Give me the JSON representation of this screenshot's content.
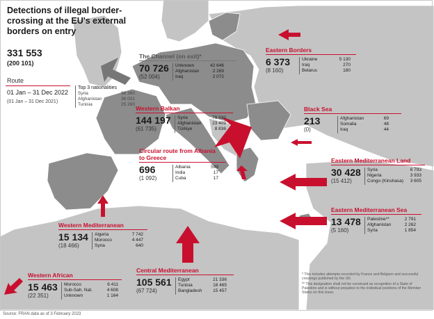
{
  "title": "Detections of illegal border-crossing at the EU's external borders on entry",
  "total": "331 553",
  "total_prev": "(200 101)",
  "route_label": "Route",
  "period": "01 Jan – 31 Dec 2022",
  "period_prev": "(01 Jan – 31 Dec 2021)",
  "top3_header": "Top 3 nationalities",
  "top3_example": [
    {
      "name": "Syria",
      "value": "98 360"
    },
    {
      "name": "Afghanistan",
      "value": "36 031"
    },
    {
      "name": "Tunisia",
      "value": "25 260"
    }
  ],
  "routes": {
    "channel": {
      "name": "The Channel (on exit)*",
      "value": "70 726",
      "prev": "(52 004)",
      "nat": [
        {
          "name": "Unknown",
          "value": "42 646"
        },
        {
          "name": "Afghanistan",
          "value": "2 269"
        },
        {
          "name": "Iraq",
          "value": "2 072"
        }
      ]
    },
    "eastern_borders": {
      "name": "Eastern Borders",
      "value": "6 373",
      "prev": "(8 160)",
      "nat": [
        {
          "name": "Ukraine",
          "value": "5 130"
        },
        {
          "name": "Iraq",
          "value": "270"
        },
        {
          "name": "Belarus",
          "value": "180"
        }
      ]
    },
    "western_balkan": {
      "name": "Western Balkan",
      "value": "144 197",
      "prev": "(61 735)",
      "nat": [
        {
          "name": "Syria",
          "value": "79 932"
        },
        {
          "name": "Afghanistan",
          "value": "23 409"
        },
        {
          "name": "Türkiye",
          "value": "8 836"
        }
      ]
    },
    "black_sea": {
      "name": "Black Sea",
      "value": "213",
      "prev": "(0)",
      "nat": [
        {
          "name": "Afghanistan",
          "value": "69"
        },
        {
          "name": "Somalia",
          "value": "48"
        },
        {
          "name": "Iraq",
          "value": "44"
        }
      ]
    },
    "circular": {
      "name": "Circular route from Albania to Greece",
      "value": "696",
      "prev": "(1 092)",
      "nat": [
        {
          "name": "Albania",
          "value": "599"
        },
        {
          "name": "India",
          "value": "17"
        },
        {
          "name": "Cuba",
          "value": "17"
        }
      ]
    },
    "em_land": {
      "name": "Eastern Mediterranean Land",
      "value": "30 428",
      "prev": "(15 412)",
      "nat": [
        {
          "name": "Syria",
          "value": "6 793"
        },
        {
          "name": "Nigeria",
          "value": "3 933"
        },
        {
          "name": "Congo (Kinshasa)",
          "value": "3 605"
        }
      ]
    },
    "em_sea": {
      "name": "Eastern Mediterranean Sea",
      "value": "13 478",
      "prev": "(5 160)",
      "nat": [
        {
          "name": "Palestine**",
          "value": "2 791"
        },
        {
          "name": "Afghanistan",
          "value": "2 262"
        },
        {
          "name": "Syria",
          "value": "1 854"
        }
      ]
    },
    "western_med": {
      "name": "Western Mediterranean",
      "value": "15 134",
      "prev": "(18 466)",
      "nat": [
        {
          "name": "Algeria",
          "value": "7 742"
        },
        {
          "name": "Morocco",
          "value": "4 447"
        },
        {
          "name": "Syria",
          "value": "640"
        }
      ]
    },
    "central_med": {
      "name": "Central Mediterranean",
      "value": "105 561",
      "prev": "(67 724)",
      "nat": [
        {
          "name": "Egypt",
          "value": "21 336"
        },
        {
          "name": "Tunisia",
          "value": "18 465"
        },
        {
          "name": "Bangladesh",
          "value": "15 457"
        }
      ]
    },
    "western_african": {
      "name": "Western African",
      "value": "15 463",
      "prev": "(22 351)",
      "nat": [
        {
          "name": "Morocco",
          "value": "6 411"
        },
        {
          "name": "Sub-Sah. Nat.",
          "value": "4 608"
        },
        {
          "name": "Unknown",
          "value": "1 164"
        }
      ]
    }
  },
  "notes": [
    "* This includes attempts recorded by France and Belgium and successful crossings published by the UK.",
    "** This designation shall not be construed as recognition of a State of Palestine and is without prejudice to the individual positions of the Member States on this issue."
  ],
  "source": "Source: FRAN data as of 3 February 2023",
  "colors": {
    "eu": "#8c8c8c",
    "noneu": "#c4c4c4",
    "sea": "#ffffff",
    "accent": "#c8102e"
  }
}
